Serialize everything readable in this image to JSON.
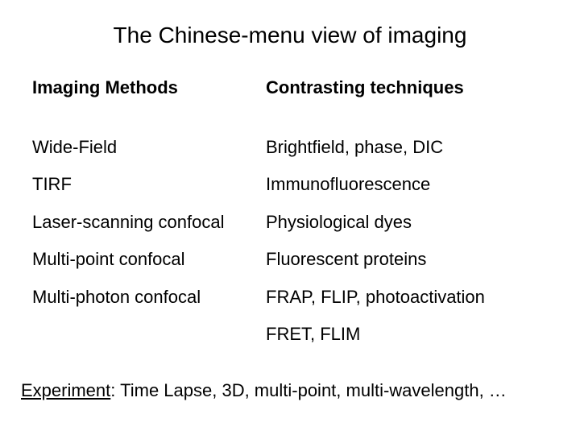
{
  "title": "The Chinese-menu view of imaging",
  "columns": {
    "left": {
      "header": "Imaging Methods",
      "items": [
        "Wide-Field",
        "TIRF",
        "Laser-scanning confocal",
        "Multi-point confocal",
        "Multi-photon confocal"
      ]
    },
    "right": {
      "header": "Contrasting techniques",
      "items": [
        "Brightfield, phase, DIC",
        "Immunofluorescence",
        "Physiological dyes",
        "Fluorescent proteins",
        "FRAP, FLIP, photoactivation",
        "FRET, FLIM"
      ]
    }
  },
  "footer": {
    "label": "Experiment",
    "text": ": Time Lapse, 3D, multi-point, multi-wavelength, …"
  },
  "style": {
    "background_color": "#ffffff",
    "text_color": "#000000",
    "title_fontsize": 28,
    "header_fontsize": 22,
    "item_fontsize": 22,
    "footer_fontsize": 22,
    "font_family": "Arial"
  }
}
